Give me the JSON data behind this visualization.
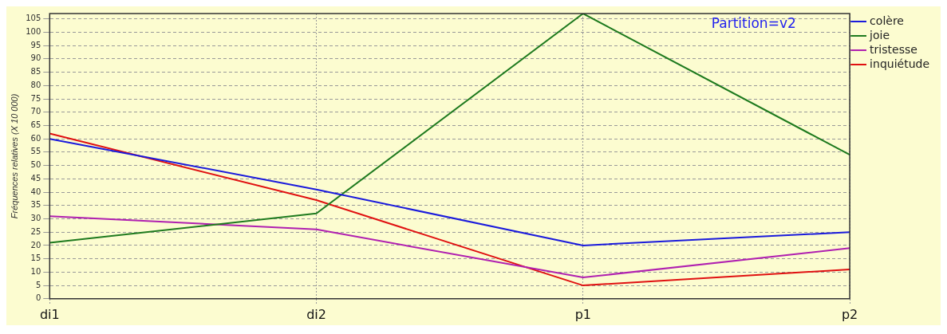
{
  "chart_data": {
    "type": "line",
    "ylabel": "Fréquences relatives (X 10 000)",
    "annotations": [
      "Partition=v2"
    ],
    "categories": [
      "di1",
      "di2",
      "p1",
      "p2"
    ],
    "series": [
      {
        "name": "colère",
        "color": "#1a1adc",
        "values": [
          60,
          41,
          20,
          25
        ]
      },
      {
        "name": "joie",
        "color": "#1e7a1e",
        "values": [
          21,
          32,
          107,
          54
        ]
      },
      {
        "name": "tristesse",
        "color": "#b020b0",
        "values": [
          31,
          26,
          8,
          19
        ]
      },
      {
        "name": "inquiétude",
        "color": "#e01010",
        "values": [
          62,
          37,
          5,
          11
        ]
      }
    ],
    "ylim": [
      0,
      107
    ],
    "yticks": [
      0,
      5,
      10,
      15,
      20,
      25,
      30,
      35,
      40,
      45,
      50,
      55,
      60,
      65,
      70,
      75,
      80,
      85,
      90,
      95,
      100,
      105
    ],
    "grid": true,
    "legend": "top right",
    "marker": "none",
    "line_style": "solid"
  }
}
